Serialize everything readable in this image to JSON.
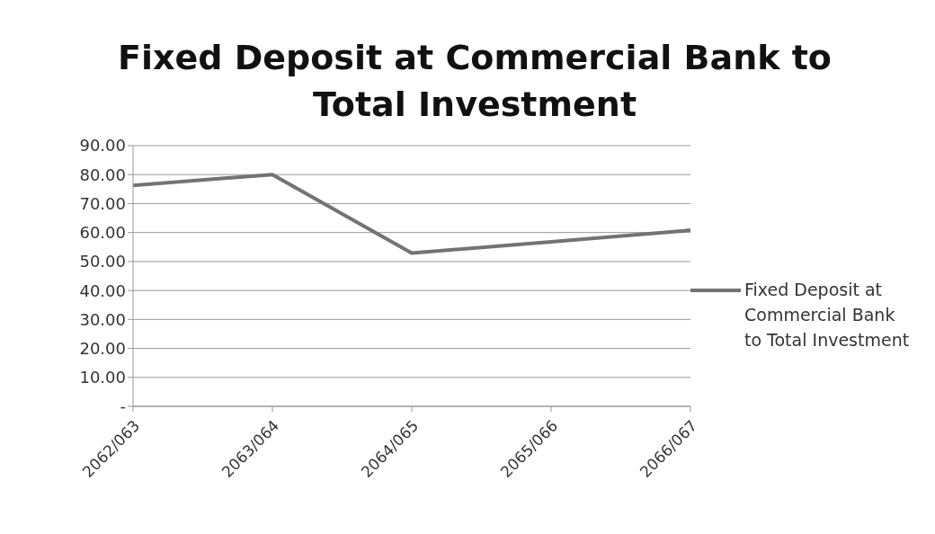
{
  "chart_data": {
    "type": "line",
    "title": "Fixed Deposit at Commercial Bank to Total Investment",
    "categories": [
      "2062/063",
      "2063/064",
      "2064/065",
      "2065/066",
      "2066/067"
    ],
    "series": [
      {
        "name": "Fixed Deposit at Commercial Bank to Total Investment",
        "color": "#737373",
        "values": [
          76.3,
          80.0,
          52.9,
          56.8,
          60.8
        ]
      }
    ],
    "ylim": [
      0,
      90
    ],
    "yticks": [
      {
        "value": 0,
        "label": "-"
      },
      {
        "value": 10,
        "label": "10.00"
      },
      {
        "value": 20,
        "label": "20.00"
      },
      {
        "value": 30,
        "label": "30.00"
      },
      {
        "value": 40,
        "label": "40.00"
      },
      {
        "value": 50,
        "label": "50.00"
      },
      {
        "value": 60,
        "label": "60.00"
      },
      {
        "value": 70,
        "label": "70.00"
      },
      {
        "value": 80,
        "label": "80.00"
      },
      {
        "value": 90,
        "label": "90.00"
      }
    ],
    "grid": "y",
    "legend": "right",
    "marker": "none",
    "line_style": "solid"
  }
}
